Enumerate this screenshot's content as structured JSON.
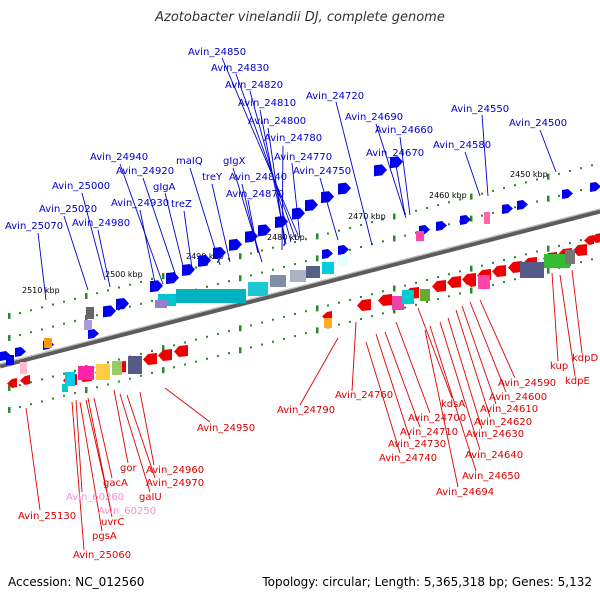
{
  "title": "Azotobacter vinelandii DJ, complete genome",
  "footer": {
    "accession": "Accession: NC_012560",
    "topology": "Topology: circular; Length: 5,365,318 bp; Genes: 5,132"
  },
  "scale_labels": [
    "2450 kbp",
    "2460 kbp",
    "2470 kbp",
    "2480 kbp",
    "2490 kbp",
    "2500 kbp",
    "2510 kbp"
  ],
  "colors": {
    "forward_label": "#0000cc",
    "reverse_label": "#dd0000",
    "pseudo_label": "#ff88dd",
    "forward_arrow": "#0000ee",
    "reverse_arrow": "#ee0000",
    "backbone": "#777777",
    "tick": "#2a8a2a"
  },
  "forward_genes": [
    "Avin_24850",
    "Avin_24830",
    "Avin_24820",
    "Avin_24720",
    "Avin_24810",
    "Avin_24690",
    "Avin_24550",
    "Avin_24800",
    "Avin_24500",
    "Avin_24660",
    "Avin_24780",
    "Avin_24580",
    "Avin_24940",
    "maIQ",
    "gIgX",
    "Avin_24670",
    "Avin_24770",
    "treY",
    "Avin_24840",
    "Avin_24750",
    "Avin_25000",
    "Avin_24920",
    "gIgA",
    "Avin_24870",
    "Avin_25020",
    "Avin_24930",
    "treZ",
    "Avin_24980",
    "Avin_25070"
  ],
  "reverse_genes": [
    "kdpD",
    "kup",
    "kdpE",
    "Avin_24590",
    "Avin_24760",
    "Avin_24600",
    "kdsA",
    "Avin_24790",
    "Avin_24610",
    "Avin_24700",
    "Avin_24620",
    "Avin_24710",
    "Avin_24630",
    "Avin_24950",
    "Avin_24730",
    "Avin_24740",
    "Avin_24640",
    "gor",
    "Avin_24960",
    "Avin_24650",
    "gacA",
    "Avin_24970",
    "Avin_24694",
    "Avin_60260",
    "gaIU",
    "Avin_60250",
    "Avin_25130",
    "uvrC",
    "pgsA",
    "Avin_25060"
  ]
}
